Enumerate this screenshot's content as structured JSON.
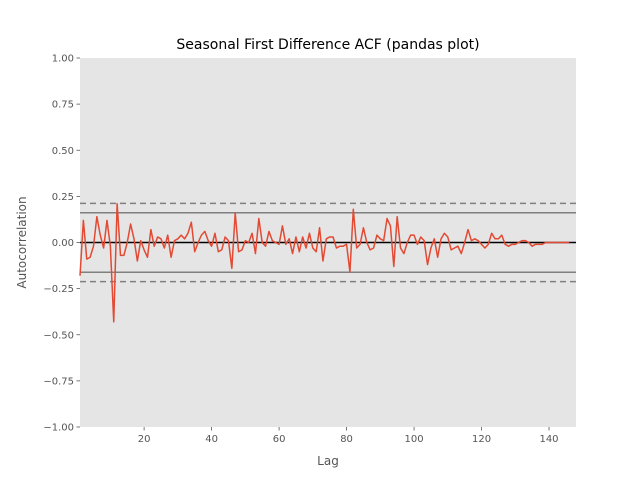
{
  "chart_data": {
    "type": "line",
    "title": "Seasonal First Difference ACF (pandas plot)",
    "xlabel": "Lag",
    "ylabel": "Autocorrelation",
    "xlim": [
      1,
      148
    ],
    "ylim": [
      -1.0,
      1.0
    ],
    "x_ticks": [
      20,
      40,
      60,
      80,
      100,
      120,
      140
    ],
    "y_ticks": [
      -1.0,
      -0.75,
      -0.5,
      -0.25,
      0.0,
      0.25,
      0.5,
      0.75,
      1.0
    ],
    "y_tick_labels": [
      "−1.00",
      "−0.75",
      "−0.50",
      "−0.25",
      "0.00",
      "0.25",
      "0.50",
      "0.75",
      "1.00"
    ],
    "x_tick_labels": [
      "20",
      "40",
      "60",
      "80",
      "100",
      "120",
      "140"
    ],
    "grid": false,
    "background": "#e5e5e5",
    "series_color": "#e24a33",
    "confidence_bands": {
      "z95": 0.161,
      "z99": 0.212,
      "solid_color": "#808080",
      "dashed_color": "#808080",
      "zero_line_color": "#000000"
    },
    "series": [
      {
        "values": [
          -0.18,
          0.12,
          -0.09,
          -0.08,
          -0.02,
          0.14,
          0.04,
          -0.03,
          0.12,
          -0.02,
          -0.43,
          0.21,
          -0.07,
          -0.07,
          0.0,
          0.1,
          0.02,
          -0.1,
          0.01,
          -0.04,
          -0.08,
          0.07,
          -0.02,
          0.03,
          0.02,
          -0.03,
          0.04,
          -0.08,
          0.01,
          0.02,
          0.04,
          0.02,
          0.05,
          0.11,
          -0.05,
          0.0,
          0.04,
          0.06,
          0.01,
          -0.02,
          0.05,
          -0.05,
          -0.04,
          0.03,
          0.01,
          -0.14,
          0.16,
          -0.05,
          -0.04,
          0.01,
          0.0,
          0.05,
          -0.06,
          0.13,
          0.0,
          -0.02,
          0.06,
          0.01,
          0.0,
          -0.01,
          0.09,
          -0.01,
          0.02,
          -0.06,
          0.03,
          -0.05,
          0.03,
          -0.03,
          0.05,
          -0.03,
          -0.05,
          0.08,
          -0.1,
          0.02,
          0.03,
          0.03,
          -0.03,
          -0.02,
          -0.02,
          -0.01,
          -0.16,
          0.18,
          -0.03,
          -0.01,
          0.08,
          0.0,
          -0.04,
          -0.03,
          0.04,
          0.02,
          0.01,
          0.13,
          0.09,
          -0.13,
          0.14,
          -0.03,
          -0.06,
          0.0,
          0.04,
          0.04,
          -0.01,
          0.03,
          0.01,
          -0.12,
          -0.03,
          0.02,
          -0.08,
          0.02,
          0.05,
          0.03,
          -0.04,
          -0.03,
          -0.02,
          -0.06,
          0.0,
          0.07,
          0.01,
          0.02,
          0.01,
          -0.01,
          -0.03,
          -0.01,
          0.05,
          0.02,
          0.02,
          0.04,
          -0.01,
          -0.02,
          -0.01,
          -0.01,
          0.0,
          0.01,
          0.01,
          0.0,
          -0.02,
          -0.01,
          -0.01,
          -0.01,
          0.0,
          0.0,
          0.0,
          0.0,
          0.0,
          0.0,
          0.0,
          0.0
        ]
      }
    ]
  }
}
